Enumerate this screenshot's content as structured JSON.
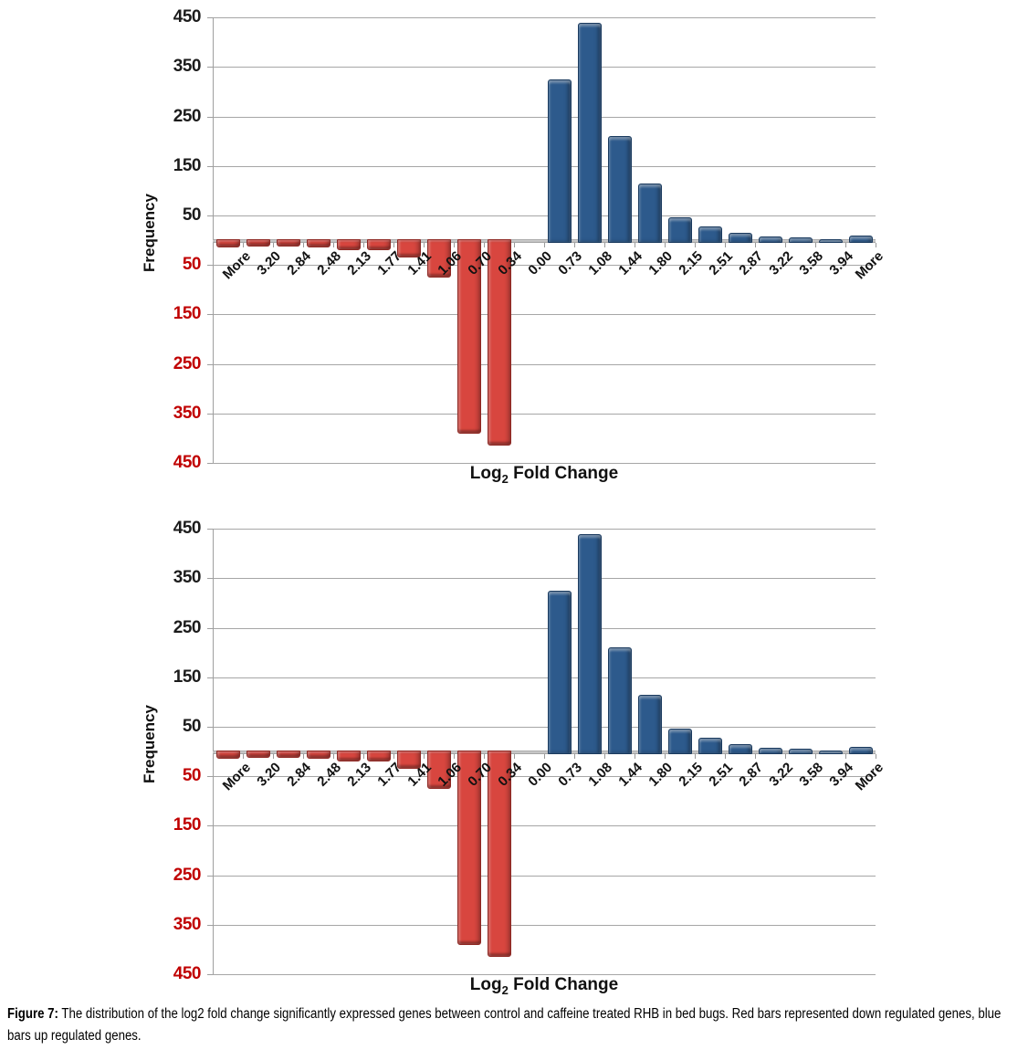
{
  "figure": {
    "caption_label": "Figure 7:",
    "caption_text": "The distribution of the log2 fold change significantly expressed genes between control and caffeine treated RHB in bed bugs. Red bars represented down regulated genes, blue bars up regulated genes."
  },
  "chart_data": [
    {
      "type": "bar",
      "title": "",
      "ylabel": "Frequency",
      "xlabel": "Log2 Fold Change",
      "xlabel_parts": {
        "main": "Log",
        "sub": "2",
        "rest": " Fold Change"
      },
      "ylim": [
        -450,
        450
      ],
      "grid": true,
      "legend_position": "none",
      "yticks": [
        450,
        350,
        250,
        150,
        50,
        -50,
        -150,
        -250,
        -350,
        -450
      ],
      "categories": [
        "More",
        "3.20",
        "2.84",
        "2.48",
        "2.13",
        "1.77",
        "1.41",
        "1.06",
        "0.70",
        "0.34",
        "0.00",
        "0.73",
        "1.08",
        "1.44",
        "1.80",
        "2.15",
        "2.51",
        "2.87",
        "3.22",
        "3.58",
        "3.94",
        "More"
      ],
      "series": [
        {
          "name": "down regulated genes",
          "color": "#d8463f",
          "values": [
            -10,
            -8,
            -8,
            -10,
            -15,
            -15,
            -30,
            -70,
            -385,
            -410,
            0,
            0,
            0,
            0,
            0,
            0,
            0,
            0,
            0,
            0,
            0,
            0
          ]
        },
        {
          "name": "up regulated genes",
          "color": "#2d5a8c",
          "values": [
            0,
            0,
            0,
            0,
            0,
            0,
            0,
            0,
            0,
            0,
            0,
            325,
            440,
            210,
            115,
            47,
            28,
            15,
            8,
            5,
            2,
            10
          ]
        }
      ],
      "colors": {
        "grid": "#a6a6a6",
        "axis": "#9a9a9a",
        "tick_label_pos": "#1b1b1b",
        "tick_label_neg": "#c00000"
      }
    },
    {
      "type": "bar",
      "title": "",
      "ylabel": "Frequency",
      "xlabel": "Log2 Fold Change",
      "xlabel_parts": {
        "main": "Log",
        "sub": "2",
        "rest": " Fold Change"
      },
      "ylim": [
        -450,
        450
      ],
      "grid": true,
      "legend_position": "none",
      "yticks": [
        450,
        350,
        250,
        150,
        50,
        -50,
        -150,
        -250,
        -350,
        -450
      ],
      "categories": [
        "More",
        "3.20",
        "2.84",
        "2.48",
        "2.13",
        "1.77",
        "1.41",
        "1.06",
        "0.70",
        "0.34",
        "0.00",
        "0.73",
        "1.08",
        "1.44",
        "1.80",
        "2.15",
        "2.51",
        "2.87",
        "3.22",
        "3.58",
        "3.94",
        "More"
      ],
      "series": [
        {
          "name": "down regulated genes",
          "color": "#d8463f",
          "values": [
            -10,
            -8,
            -8,
            -10,
            -15,
            -15,
            -30,
            -70,
            -385,
            -410,
            0,
            0,
            0,
            0,
            0,
            0,
            0,
            0,
            0,
            0,
            0,
            0
          ]
        },
        {
          "name": "up regulated genes",
          "color": "#2d5a8c",
          "values": [
            0,
            0,
            0,
            0,
            0,
            0,
            0,
            0,
            0,
            0,
            0,
            325,
            440,
            210,
            115,
            47,
            28,
            15,
            8,
            5,
            2,
            10
          ]
        }
      ],
      "colors": {
        "grid": "#a6a6a6",
        "axis": "#9a9a9a",
        "tick_label_pos": "#1b1b1b",
        "tick_label_neg": "#c00000"
      }
    }
  ]
}
